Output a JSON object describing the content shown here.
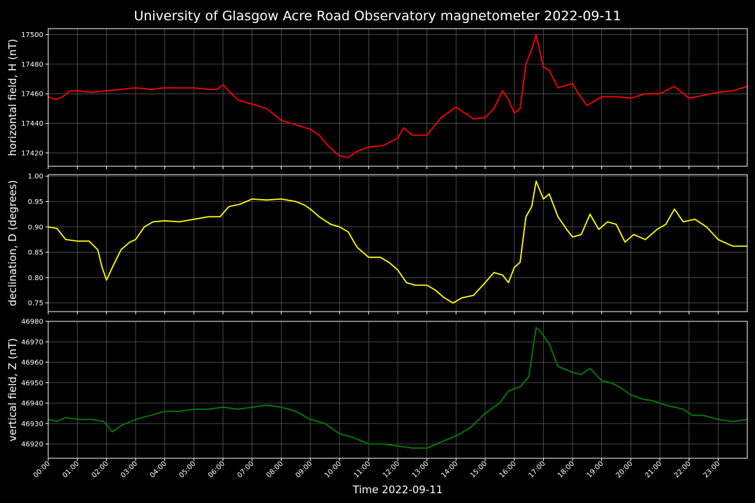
{
  "title": "University of Glasgow Acre Road Observatory magnetometer 2022-09-11",
  "xlabel": "Time 2022-09-11",
  "x_ticks": [
    "00:00",
    "01:00",
    "02:00",
    "03:00",
    "04:00",
    "05:00",
    "06:00",
    "07:00",
    "08:00",
    "09:00",
    "10:00",
    "11:00",
    "12:00",
    "13:00",
    "14:00",
    "15:00",
    "16:00",
    "17:00",
    "18:00",
    "19:00",
    "20:00",
    "21:00",
    "22:00",
    "23:00"
  ],
  "colors": {
    "background": "#000000",
    "grid": "#5a5a5a",
    "axes": "#ffffff",
    "H": "#ff0000",
    "D": "#ffff00",
    "Z": "#008000"
  },
  "chart_data": [
    {
      "type": "line",
      "ylabel": "horizontal field, H (nT)",
      "color": "#ff0000",
      "x_unit": "hours since 00:00",
      "xlim": [
        0,
        24
      ],
      "ylim": [
        17411,
        17504
      ],
      "y_ticks": [
        17420,
        17440,
        17460,
        17480,
        17500
      ],
      "x": [
        0,
        0.25,
        0.5,
        0.75,
        1,
        1.5,
        2,
        2.5,
        3,
        3.5,
        4,
        4.5,
        5,
        5.5,
        5.8,
        6,
        6.2,
        6.5,
        6.8,
        7,
        7.5,
        8,
        8.5,
        9,
        9.3,
        9.6,
        10,
        10.3,
        10.6,
        11,
        11.5,
        12,
        12.2,
        12.5,
        13,
        13.5,
        14,
        14.3,
        14.6,
        15,
        15.3,
        15.6,
        15.8,
        16,
        16.2,
        16.4,
        16.6,
        16.75,
        17,
        17.2,
        17.5,
        18,
        18.2,
        18.5,
        19,
        19.5,
        20,
        20.5,
        21,
        21.5,
        22,
        22.5,
        23,
        23.5,
        24
      ],
      "y": [
        17458,
        17456,
        17458,
        17462,
        17462,
        17461,
        17462,
        17463,
        17464,
        17463,
        17464,
        17464,
        17464,
        17463,
        17463,
        17466,
        17462,
        17456,
        17454,
        17453,
        17450,
        17442,
        17439,
        17436,
        17432,
        17425,
        17418,
        17417,
        17421,
        17424,
        17425,
        17430,
        17437,
        17432,
        17432,
        17444,
        17451,
        17447,
        17443,
        17444,
        17450,
        17462,
        17456,
        17447,
        17450,
        17480,
        17490,
        17500,
        17478,
        17476,
        17464,
        17467,
        17460,
        17452,
        17458,
        17458,
        17457,
        17460,
        17460,
        17465,
        17457,
        17459,
        17461,
        17462,
        17465
      ]
    },
    {
      "type": "line",
      "ylabel": "declination, D (degrees)",
      "color": "#ffff00",
      "x_unit": "hours since 00:00",
      "xlim": [
        0,
        24
      ],
      "ylim": [
        0.733,
        1.003
      ],
      "y_ticks": [
        0.75,
        0.8,
        0.85,
        0.9,
        0.95,
        1.0
      ],
      "x": [
        0,
        0.3,
        0.6,
        1,
        1.4,
        1.7,
        1.85,
        2,
        2.2,
        2.5,
        2.8,
        3,
        3.3,
        3.6,
        4,
        4.5,
        5,
        5.5,
        5.9,
        6.2,
        6.6,
        7,
        7.5,
        8,
        8.5,
        8.8,
        9,
        9.3,
        9.7,
        10,
        10.3,
        10.6,
        11,
        11.4,
        11.7,
        12,
        12.3,
        12.6,
        13,
        13.3,
        13.6,
        13.9,
        14.2,
        14.6,
        15,
        15.3,
        15.6,
        15.8,
        16,
        16.2,
        16.4,
        16.6,
        16.75,
        17,
        17.2,
        17.5,
        17.8,
        18,
        18.3,
        18.6,
        18.9,
        19.2,
        19.5,
        19.8,
        20.1,
        20.5,
        20.9,
        21.2,
        21.5,
        21.8,
        22.2,
        22.6,
        23,
        23.5,
        24
      ],
      "y": [
        0.9,
        0.897,
        0.875,
        0.872,
        0.872,
        0.855,
        0.82,
        0.795,
        0.82,
        0.855,
        0.87,
        0.875,
        0.9,
        0.91,
        0.912,
        0.91,
        0.915,
        0.92,
        0.92,
        0.94,
        0.945,
        0.955,
        0.953,
        0.955,
        0.95,
        0.943,
        0.935,
        0.92,
        0.905,
        0.9,
        0.89,
        0.86,
        0.84,
        0.84,
        0.83,
        0.815,
        0.79,
        0.785,
        0.785,
        0.775,
        0.76,
        0.75,
        0.76,
        0.765,
        0.79,
        0.81,
        0.805,
        0.79,
        0.82,
        0.83,
        0.92,
        0.94,
        0.99,
        0.955,
        0.965,
        0.92,
        0.895,
        0.88,
        0.885,
        0.925,
        0.895,
        0.91,
        0.905,
        0.87,
        0.885,
        0.875,
        0.895,
        0.905,
        0.935,
        0.91,
        0.915,
        0.9,
        0.875,
        0.862,
        0.862
      ]
    },
    {
      "type": "line",
      "ylabel": "vertical field, Z (nT)",
      "color": "#008000",
      "x_unit": "hours since 00:00",
      "xlim": [
        0,
        24
      ],
      "ylim": [
        46913,
        46980
      ],
      "y_ticks": [
        46920,
        46930,
        46940,
        46950,
        46960,
        46970,
        46980
      ],
      "x": [
        0,
        0.3,
        0.6,
        1,
        1.5,
        1.9,
        2.2,
        2.5,
        3,
        3.5,
        4,
        4.5,
        5,
        5.5,
        6,
        6.5,
        7,
        7.5,
        8,
        8.5,
        9,
        9.5,
        10,
        10.5,
        11,
        11.5,
        12,
        12.5,
        13,
        13.5,
        14,
        14.5,
        15,
        15.5,
        15.8,
        16.2,
        16.5,
        16.75,
        16.9,
        17.2,
        17.5,
        18,
        18.3,
        18.6,
        19,
        19.3,
        19.6,
        20,
        20.4,
        20.8,
        21.2,
        21.5,
        21.8,
        22.1,
        22.5,
        23,
        23.5,
        24
      ],
      "y": [
        46932,
        46931,
        46933,
        46932,
        46932,
        46931,
        46926,
        46929,
        46932,
        46934,
        46936,
        46936,
        46937,
        46937,
        46938,
        46937,
        46938,
        46939,
        46938,
        46936,
        46932,
        46930,
        46925,
        46923,
        46920,
        46920,
        46919,
        46918,
        46918,
        46921,
        46924,
        46928,
        46935,
        46940,
        46946,
        46948,
        46953,
        46977,
        46975,
        46969,
        46958,
        46955,
        46954,
        46957,
        46951,
        46950,
        46948,
        46944,
        46942,
        46941,
        46939,
        46938,
        46937,
        46934,
        46934,
        46932,
        46931,
        46932
      ]
    }
  ]
}
